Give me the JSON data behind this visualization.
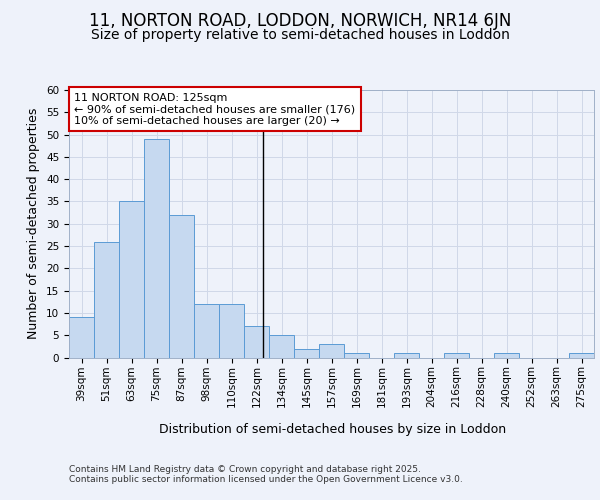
{
  "title": "11, NORTON ROAD, LODDON, NORWICH, NR14 6JN",
  "subtitle": "Size of property relative to semi-detached houses in Loddon",
  "xlabel": "Distribution of semi-detached houses by size in Loddon",
  "ylabel": "Number of semi-detached properties",
  "bins": [
    "39sqm",
    "51sqm",
    "63sqm",
    "75sqm",
    "87sqm",
    "98sqm",
    "110sqm",
    "122sqm",
    "134sqm",
    "145sqm",
    "157sqm",
    "169sqm",
    "181sqm",
    "193sqm",
    "204sqm",
    "216sqm",
    "228sqm",
    "240sqm",
    "252sqm",
    "263sqm",
    "275sqm"
  ],
  "values": [
    9,
    26,
    35,
    49,
    32,
    12,
    12,
    7,
    5,
    2,
    3,
    1,
    0,
    1,
    0,
    1,
    0,
    1,
    0,
    0,
    1
  ],
  "bar_color": "#c6d9f0",
  "bar_edge_color": "#5b9bd5",
  "property_sqm": 125,
  "annotation_text": "11 NORTON ROAD: 125sqm\n← 90% of semi-detached houses are smaller (176)\n10% of semi-detached houses are larger (20) →",
  "annotation_box_color": "#ffffff",
  "annotation_box_edge_color": "#cc0000",
  "ylim": [
    0,
    60
  ],
  "yticks": [
    0,
    5,
    10,
    15,
    20,
    25,
    30,
    35,
    40,
    45,
    50,
    55,
    60
  ],
  "grid_color": "#d0d8e8",
  "background_color": "#eef2fa",
  "footer_text": "Contains HM Land Registry data © Crown copyright and database right 2025.\nContains public sector information licensed under the Open Government Licence v3.0.",
  "title_fontsize": 12,
  "subtitle_fontsize": 10,
  "axis_label_fontsize": 9,
  "tick_fontsize": 7.5,
  "annotation_fontsize": 8,
  "footer_fontsize": 6.5
}
